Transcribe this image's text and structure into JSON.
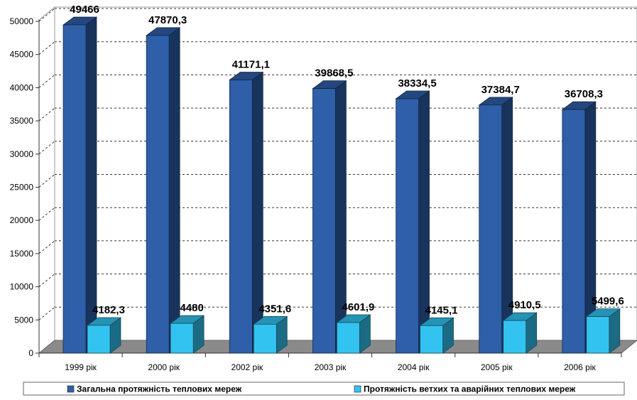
{
  "chart_data": {
    "type": "bar",
    "categories": [
      "1999 рік",
      "2000  рік",
      "2002  рік",
      "2003  рік",
      "2004  рік",
      "2005 рік",
      "2006 рік"
    ],
    "series": [
      {
        "name": "Загальна протяжність теплових мереж",
        "values": [
          49466,
          47870.3,
          41171.1,
          39868.5,
          38334.5,
          37384.7,
          36708.3
        ],
        "labels": [
          "49466",
          "47870,3",
          "41171,1",
          "39868,5",
          "38334,5",
          "37384,7",
          "36708,3"
        ],
        "color": "#2E5FA8"
      },
      {
        "name": "Протяжність ветхих та аварійних теплових мереж",
        "values": [
          4182.3,
          4480,
          4351.6,
          4601.9,
          4145.1,
          4910.5,
          5499.6
        ],
        "labels": [
          "4182,3",
          "4480",
          "4351,6",
          "4601,9",
          "4145,1",
          "4910,5",
          "5499,6"
        ],
        "color": "#33C3F0"
      }
    ],
    "ylim": [
      0,
      50000
    ],
    "yticks": [
      0,
      5000,
      10000,
      15000,
      20000,
      25000,
      30000,
      35000,
      40000,
      45000,
      50000
    ],
    "grid": true,
    "legend_position": "bottom",
    "title": "",
    "xlabel": "",
    "ylabel": ""
  }
}
